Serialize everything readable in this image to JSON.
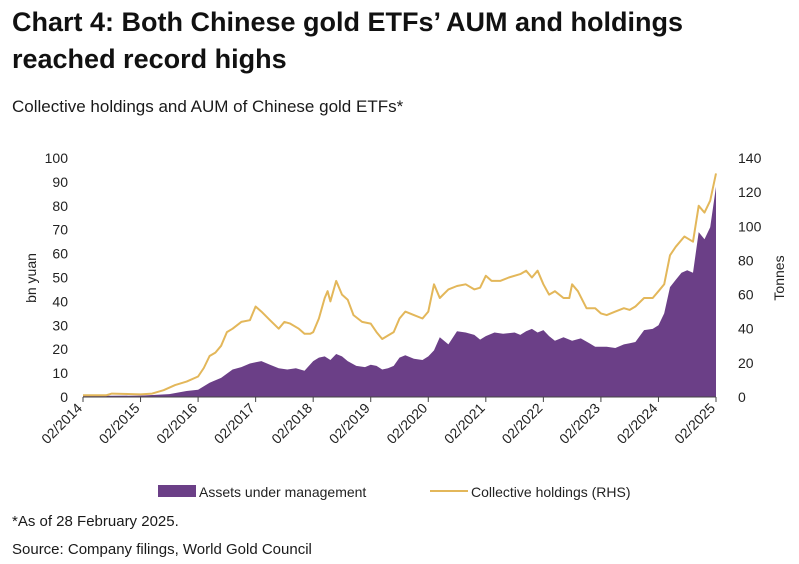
{
  "title": "Chart 4: Both Chinese gold ETFs’ AUM and holdings reached record highs",
  "subtitle": "Collective holdings and AUM of Chinese gold ETFs*",
  "footnote": "*As of 28 February 2025.",
  "source": "Source: Company filings, World Gold Council",
  "colors": {
    "aum": "#6b3f87",
    "holdings": "#e3b75a"
  },
  "chart_data": {
    "type": "area",
    "ylabel": "bn yuan",
    "y2label": "Tonnes",
    "ylim": [
      0,
      100
    ],
    "y2lim": [
      0,
      140
    ],
    "yticks": [
      "0",
      "10",
      "20",
      "30",
      "40",
      "50",
      "60",
      "70",
      "80",
      "90",
      "100"
    ],
    "y2ticks": [
      "0",
      "20",
      "40",
      "60",
      "80",
      "100",
      "120",
      "140"
    ],
    "xlim": [
      2014.0,
      2025.0
    ],
    "xticks": [
      {
        "x": 2014,
        "label": "02/2014"
      },
      {
        "x": 2015,
        "label": "02/2015"
      },
      {
        "x": 2016,
        "label": "02/2016"
      },
      {
        "x": 2017,
        "label": "02/2017"
      },
      {
        "x": 2018,
        "label": "02/2018"
      },
      {
        "x": 2019,
        "label": "02/2019"
      },
      {
        "x": 2020,
        "label": "02/2020"
      },
      {
        "x": 2021,
        "label": "02/2021"
      },
      {
        "x": 2022,
        "label": "02/2022"
      },
      {
        "x": 2023,
        "label": "02/2023"
      },
      {
        "x": 2024,
        "label": "02/2024"
      },
      {
        "x": 2025,
        "label": "02/2025"
      }
    ],
    "legend_position": "bottom",
    "series": [
      {
        "name": "Assets under management",
        "axis": "left",
        "kind": "area",
        "x": [
          2014.0,
          2014.5,
          2015.0,
          2015.5,
          2015.8,
          2016.0,
          2016.2,
          2016.4,
          2016.6,
          2016.75,
          2016.9,
          2017.0,
          2017.1,
          2017.25,
          2017.4,
          2017.55,
          2017.7,
          2017.85,
          2018.0,
          2018.1,
          2018.2,
          2018.3,
          2018.4,
          2018.5,
          2018.6,
          2018.75,
          2018.9,
          2019.0,
          2019.1,
          2019.2,
          2019.3,
          2019.4,
          2019.5,
          2019.6,
          2019.75,
          2019.9,
          2020.0,
          2020.1,
          2020.2,
          2020.35,
          2020.5,
          2020.65,
          2020.8,
          2020.9,
          2021.0,
          2021.15,
          2021.3,
          2021.5,
          2021.6,
          2021.7,
          2021.8,
          2021.9,
          2022.0,
          2022.1,
          2022.2,
          2022.35,
          2022.5,
          2022.65,
          2022.8,
          2022.9,
          2023.0,
          2023.1,
          2023.25,
          2023.4,
          2023.5,
          2023.6,
          2023.75,
          2023.9,
          2024.0,
          2024.1,
          2024.2,
          2024.3,
          2024.4,
          2024.5,
          2024.6,
          2024.7,
          2024.8,
          2024.9,
          2025.0
        ],
        "values": [
          0.5,
          0.5,
          0.6,
          1.2,
          2.5,
          3.0,
          6.0,
          8.0,
          11.5,
          12.5,
          14.0,
          14.5,
          15.0,
          13.5,
          12.0,
          11.5,
          12.0,
          11.0,
          15.0,
          16.5,
          17.0,
          15.5,
          18.0,
          17.0,
          15.0,
          13.0,
          12.5,
          13.5,
          13.0,
          11.5,
          12.0,
          13.0,
          16.5,
          17.5,
          16.0,
          15.5,
          17.0,
          19.5,
          25.0,
          22.0,
          27.5,
          27.0,
          26.0,
          24.0,
          25.5,
          27.0,
          26.5,
          27.0,
          26.0,
          27.5,
          28.5,
          27.0,
          28.0,
          25.5,
          23.5,
          25.0,
          23.5,
          24.5,
          22.5,
          21.0,
          21.0,
          21.0,
          20.5,
          22.0,
          22.5,
          23.0,
          28.0,
          28.5,
          30.0,
          35.0,
          46.0,
          49.0,
          52.0,
          53.0,
          52.0,
          69.0,
          66.0,
          71.0,
          88.0
        ]
      },
      {
        "name": "Collective holdings (RHS)",
        "axis": "right",
        "kind": "line",
        "x": [
          2014.0,
          2014.4,
          2014.5,
          2015.0,
          2015.2,
          2015.4,
          2015.6,
          2015.8,
          2016.0,
          2016.1,
          2016.2,
          2016.3,
          2016.4,
          2016.5,
          2016.6,
          2016.75,
          2016.9,
          2017.0,
          2017.1,
          2017.25,
          2017.4,
          2017.5,
          2017.6,
          2017.75,
          2017.85,
          2017.95,
          2018.0,
          2018.1,
          2018.2,
          2018.25,
          2018.3,
          2018.4,
          2018.5,
          2018.6,
          2018.7,
          2018.85,
          2019.0,
          2019.1,
          2019.2,
          2019.3,
          2019.4,
          2019.5,
          2019.6,
          2019.75,
          2019.9,
          2020.0,
          2020.1,
          2020.2,
          2020.35,
          2020.5,
          2020.65,
          2020.8,
          2020.9,
          2021.0,
          2021.1,
          2021.25,
          2021.4,
          2021.6,
          2021.7,
          2021.8,
          2021.9,
          2022.0,
          2022.1,
          2022.2,
          2022.35,
          2022.45,
          2022.5,
          2022.6,
          2022.75,
          2022.9,
          2023.0,
          2023.1,
          2023.25,
          2023.4,
          2023.5,
          2023.6,
          2023.75,
          2023.9,
          2024.0,
          2024.1,
          2024.2,
          2024.3,
          2024.45,
          2024.5,
          2024.6,
          2024.7,
          2024.8,
          2024.9,
          2025.0
        ],
        "values": [
          1.0,
          1.0,
          2.0,
          1.5,
          2.0,
          4.0,
          7.0,
          9.0,
          12.0,
          17.0,
          24.0,
          26.0,
          30.0,
          38.0,
          40.0,
          44.0,
          45.0,
          53.0,
          50.0,
          45.0,
          40.0,
          44.0,
          43.0,
          40.0,
          37.0,
          37.0,
          38.0,
          46.0,
          58.0,
          62.0,
          56.0,
          68.0,
          60.0,
          57.0,
          48.0,
          44.0,
          43.0,
          38.0,
          34.0,
          36.0,
          38.0,
          46.0,
          50.0,
          48.0,
          46.0,
          50.0,
          66.0,
          58.0,
          63.0,
          65.0,
          66.0,
          63.0,
          64.0,
          71.0,
          68.0,
          68.0,
          70.0,
          72.0,
          74.0,
          70.0,
          74.0,
          66.0,
          60.0,
          62.0,
          58.0,
          58.0,
          66.0,
          62.0,
          52.0,
          52.0,
          49.0,
          48.0,
          50.0,
          52.0,
          51.0,
          53.0,
          58.0,
          58.0,
          62.0,
          66.0,
          83.0,
          88.0,
          94.0,
          93.0,
          91.0,
          112.0,
          108.0,
          115.0,
          131.0
        ]
      }
    ]
  }
}
